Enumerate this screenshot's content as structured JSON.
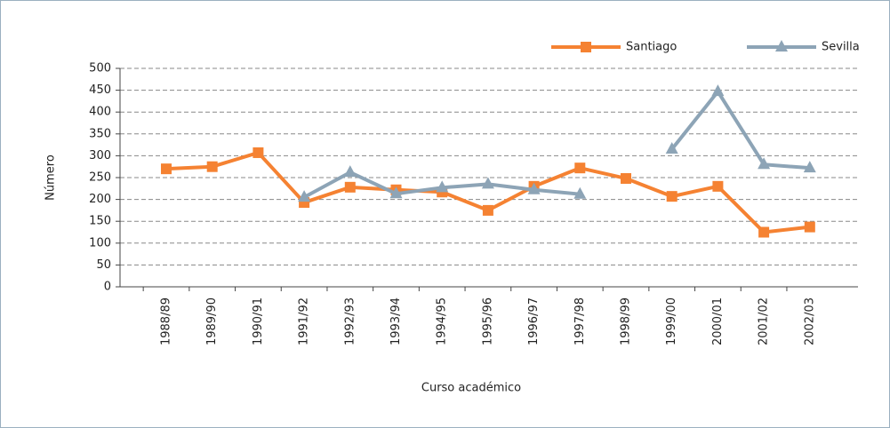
{
  "chart_data": {
    "type": "line",
    "x_label": "Curso académico",
    "y_label": "Número",
    "categories": [
      "1988/89",
      "1989/90",
      "1990/91",
      "1991/92",
      "1992/93",
      "1993/94",
      "1994/95",
      "1995/96",
      "1996/97",
      "1997/98",
      "1998/99",
      "1999/00",
      "2000/01",
      "2001/02",
      "2002/03"
    ],
    "series": [
      {
        "name": "Santiago",
        "color": "#f58232",
        "marker": "square",
        "values": [
          270,
          275,
          307,
          193,
          228,
          222,
          217,
          175,
          230,
          272,
          248,
          207,
          230,
          125,
          137
        ]
      },
      {
        "name": "Sevilla",
        "color": "#8da4b6",
        "marker": "triangle",
        "values": [
          null,
          null,
          null,
          205,
          262,
          213,
          227,
          235,
          222,
          212,
          null,
          315,
          447,
          280,
          272
        ]
      }
    ],
    "ylim": [
      0,
      500
    ],
    "yticks": [
      0,
      50,
      100,
      150,
      200,
      250,
      300,
      350,
      400,
      450,
      500
    ],
    "grid": true,
    "legend": "top-right"
  }
}
